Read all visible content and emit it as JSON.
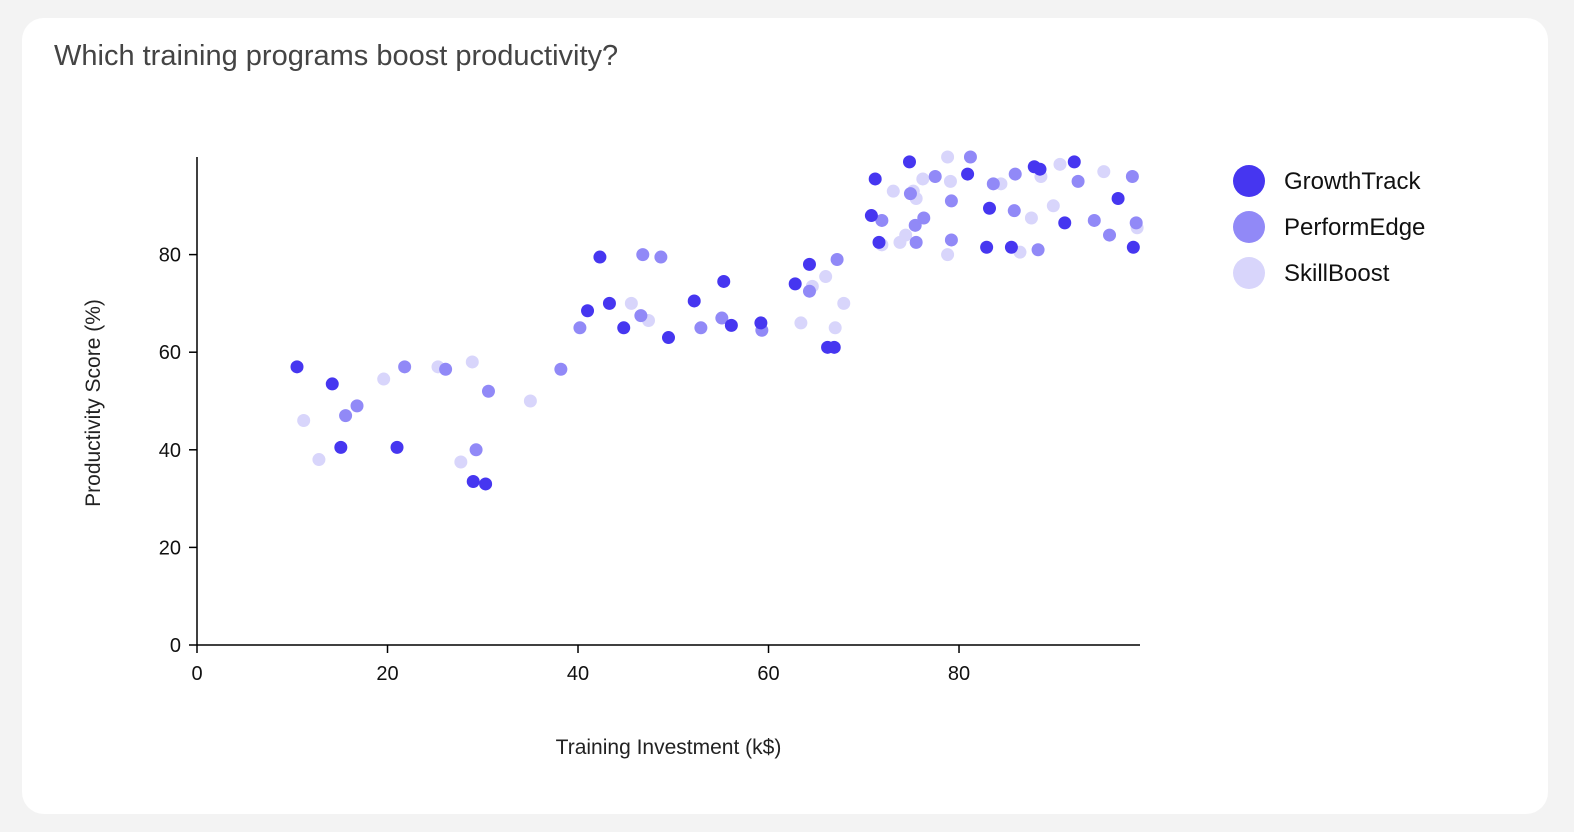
{
  "chart_data": {
    "type": "scatter",
    "title": "Which training programs boost productivity?",
    "xlabel": "Training Investment (k$)",
    "ylabel": "Productivity Score (%)",
    "xlim": [
      0,
      99
    ],
    "ylim": [
      0,
      100
    ],
    "xticks": [
      0,
      20,
      40,
      60,
      80
    ],
    "yticks": [
      0,
      20,
      40,
      60,
      80
    ],
    "grid": false,
    "legend_position": "top-right",
    "series": [
      {
        "name": "GrowthTrack",
        "color": "#4636f0",
        "points": [
          [
            10.5,
            57
          ],
          [
            14.2,
            53.5
          ],
          [
            15.1,
            40.5
          ],
          [
            21,
            40.5
          ],
          [
            29,
            33.5
          ],
          [
            30.3,
            33
          ],
          [
            41,
            68.5
          ],
          [
            42.3,
            79.5
          ],
          [
            43.3,
            70
          ],
          [
            44.8,
            65
          ],
          [
            49.5,
            63
          ],
          [
            52.2,
            70.5
          ],
          [
            55.3,
            74.5
          ],
          [
            56.1,
            65.5
          ],
          [
            59.2,
            66
          ],
          [
            62.8,
            74
          ],
          [
            64.3,
            78
          ],
          [
            66.2,
            61
          ],
          [
            66.9,
            61
          ],
          [
            70.8,
            88
          ],
          [
            71.2,
            95.5
          ],
          [
            71.6,
            82.5
          ],
          [
            74.8,
            99
          ],
          [
            80.9,
            96.5
          ],
          [
            82.9,
            81.5
          ],
          [
            83.2,
            89.5
          ],
          [
            85.5,
            81.5
          ],
          [
            87.9,
            98
          ],
          [
            88.5,
            97.5
          ],
          [
            91.1,
            86.5
          ],
          [
            92.1,
            99
          ],
          [
            96.7,
            91.5
          ],
          [
            98.3,
            81.5
          ]
        ]
      },
      {
        "name": "PerformEdge",
        "color": "#9189f7",
        "points": [
          [
            15.6,
            47
          ],
          [
            16.8,
            49
          ],
          [
            21.8,
            57
          ],
          [
            26.1,
            56.5
          ],
          [
            29.3,
            40
          ],
          [
            30.6,
            52
          ],
          [
            38.2,
            56.5
          ],
          [
            40.2,
            65
          ],
          [
            46.6,
            67.5
          ],
          [
            46.8,
            80
          ],
          [
            48.7,
            79.5
          ],
          [
            52.9,
            65
          ],
          [
            55.1,
            67
          ],
          [
            59.3,
            64.5
          ],
          [
            64.3,
            72.5
          ],
          [
            67.2,
            79
          ],
          [
            71.9,
            87
          ],
          [
            74.9,
            92.5
          ],
          [
            75.4,
            86
          ],
          [
            75.5,
            82.5
          ],
          [
            76.3,
            87.5
          ],
          [
            77.5,
            96
          ],
          [
            79.2,
            91
          ],
          [
            79.2,
            83
          ],
          [
            81.2,
            100
          ],
          [
            83.6,
            94.5
          ],
          [
            85.9,
            96.5
          ],
          [
            85.8,
            89
          ],
          [
            88.3,
            81
          ],
          [
            92.5,
            95
          ],
          [
            94.2,
            87
          ],
          [
            95.8,
            84
          ],
          [
            98.2,
            96
          ],
          [
            98.6,
            86.5
          ]
        ]
      },
      {
        "name": "SkillBoost",
        "color": "#d8d5fb",
        "points": [
          [
            11.2,
            46
          ],
          [
            12.8,
            38
          ],
          [
            19.6,
            54.5
          ],
          [
            25.3,
            57
          ],
          [
            27.7,
            37.5
          ],
          [
            28.9,
            58
          ],
          [
            35,
            50
          ],
          [
            45.6,
            70
          ],
          [
            47.4,
            66.5
          ],
          [
            63.4,
            66
          ],
          [
            64.6,
            73.5
          ],
          [
            66,
            75.5
          ],
          [
            67,
            65
          ],
          [
            67.9,
            70
          ],
          [
            71.9,
            82
          ],
          [
            73.1,
            93
          ],
          [
            73.8,
            82.5
          ],
          [
            74.4,
            84
          ],
          [
            75.2,
            93
          ],
          [
            75.5,
            91.5
          ],
          [
            76.2,
            95.5
          ],
          [
            78.8,
            80
          ],
          [
            79.1,
            95
          ],
          [
            78.8,
            100
          ],
          [
            84.4,
            94.5
          ],
          [
            86.4,
            80.5
          ],
          [
            87.6,
            87.5
          ],
          [
            88.6,
            96
          ],
          [
            89.9,
            90
          ],
          [
            90.6,
            98.5
          ],
          [
            95.2,
            97
          ],
          [
            98.7,
            85.5
          ]
        ]
      }
    ]
  }
}
